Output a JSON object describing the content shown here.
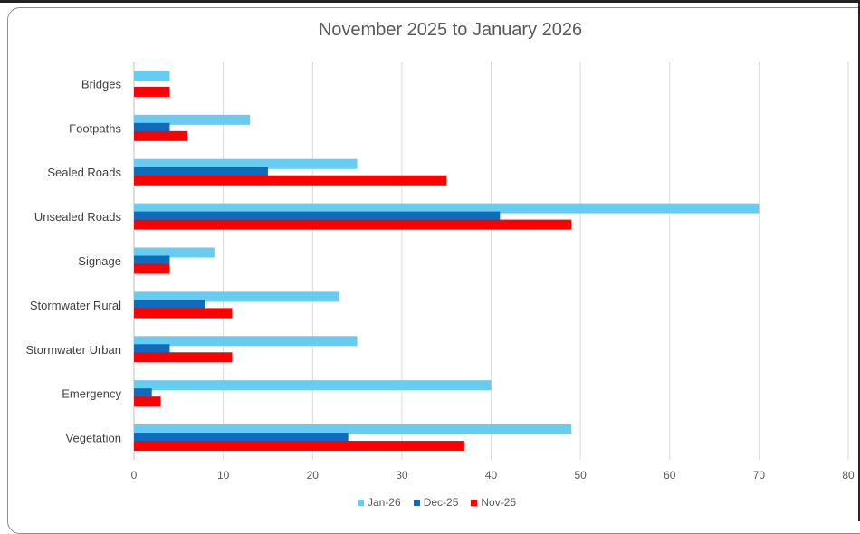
{
  "chart_data": {
    "type": "bar",
    "orientation": "horizontal",
    "title": "November 2025 to January 2026",
    "categories": [
      "Bridges",
      "Footpaths",
      "Sealed Roads",
      "Unsealed Roads",
      "Signage",
      "Stormwater Rural",
      "Stormwater Urban",
      "Emergency",
      "Vegetation"
    ],
    "series": [
      {
        "name": "Jan-26",
        "color": "#66ccf2",
        "values": [
          4,
          13,
          25,
          70,
          9,
          23,
          25,
          40,
          49
        ]
      },
      {
        "name": "Dec-25",
        "color": "#0f6cbd",
        "values": [
          0,
          4,
          15,
          41,
          4,
          8,
          4,
          2,
          24
        ]
      },
      {
        "name": "Nov-25",
        "color": "#ff0000",
        "values": [
          4,
          6,
          35,
          49,
          4,
          11,
          11,
          3,
          37
        ]
      }
    ],
    "xlim": [
      0,
      80
    ],
    "xticks": [
      0,
      10,
      20,
      30,
      40,
      50,
      60,
      70,
      80
    ],
    "grid": true,
    "legend": "bottom"
  }
}
